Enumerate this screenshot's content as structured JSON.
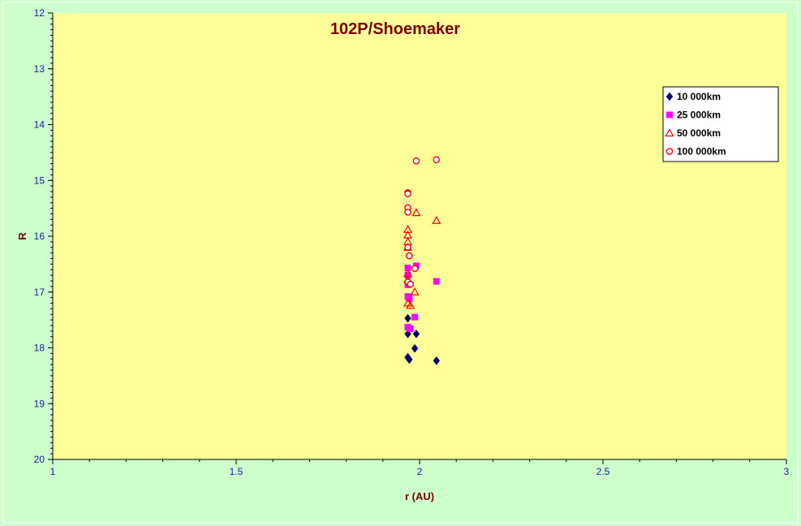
{
  "chart_data": {
    "type": "scatter",
    "title": "102P/Shoemaker",
    "xlabel": "r (AU)",
    "ylabel": "R",
    "xlim": [
      1,
      3
    ],
    "ylim": [
      12,
      20
    ],
    "y_inverted": true,
    "x_ticks": [
      {
        "value": 1,
        "label": "1"
      },
      {
        "value": 1.5,
        "label": "1.5"
      },
      {
        "value": 2,
        "label": "2"
      },
      {
        "value": 2.5,
        "label": "2.5"
      },
      {
        "value": 3,
        "label": "3"
      }
    ],
    "y_ticks": [
      {
        "value": 12,
        "label": "12"
      },
      {
        "value": 13,
        "label": "13"
      },
      {
        "value": 14,
        "label": "14"
      },
      {
        "value": 15,
        "label": "15"
      },
      {
        "value": 16,
        "label": "16"
      },
      {
        "value": 17,
        "label": "17"
      },
      {
        "value": 18,
        "label": "18"
      },
      {
        "value": 19,
        "label": "19"
      },
      {
        "value": 20,
        "label": "20"
      }
    ],
    "grid": false,
    "legend_position": "top-right",
    "colors": {
      "outer_background": "#ccffcc",
      "plot_background": "#ffff99",
      "axis": "#000000",
      "text": "#7a0000",
      "ticks": "#1a1aa6"
    },
    "series": [
      {
        "name": "10 000km",
        "marker": "diamond",
        "color": "#000066",
        "points": [
          {
            "x": 1.968,
            "y": 17.47
          },
          {
            "x": 1.968,
            "y": 17.75
          },
          {
            "x": 1.991,
            "y": 17.75
          },
          {
            "x": 1.987,
            "y": 18.01
          },
          {
            "x": 1.968,
            "y": 18.17
          },
          {
            "x": 1.972,
            "y": 18.21
          },
          {
            "x": 2.046,
            "y": 18.23
          }
        ]
      },
      {
        "name": "25 000km",
        "marker": "square",
        "color": "#ff00ff",
        "points": [
          {
            "x": 1.968,
            "y": 16.57
          },
          {
            "x": 1.991,
            "y": 16.53
          },
          {
            "x": 1.968,
            "y": 16.7
          },
          {
            "x": 1.968,
            "y": 16.87
          },
          {
            "x": 2.046,
            "y": 16.81
          },
          {
            "x": 1.968,
            "y": 17.08
          },
          {
            "x": 1.972,
            "y": 17.12
          },
          {
            "x": 1.987,
            "y": 17.45
          },
          {
            "x": 1.968,
            "y": 17.63
          },
          {
            "x": 1.975,
            "y": 17.66
          }
        ]
      },
      {
        "name": "50 000km",
        "marker": "triangle",
        "color": "#ff0000",
        "points": [
          {
            "x": 1.991,
            "y": 15.58
          },
          {
            "x": 2.046,
            "y": 15.72
          },
          {
            "x": 1.968,
            "y": 15.88
          },
          {
            "x": 1.968,
            "y": 15.98
          },
          {
            "x": 1.968,
            "y": 16.1
          },
          {
            "x": 1.968,
            "y": 16.2
          },
          {
            "x": 1.968,
            "y": 16.67
          },
          {
            "x": 1.968,
            "y": 16.78
          },
          {
            "x": 1.987,
            "y": 17.0
          },
          {
            "x": 1.968,
            "y": 17.2
          },
          {
            "x": 1.975,
            "y": 17.24
          }
        ]
      },
      {
        "name": "100 000km",
        "marker": "circle",
        "color": "#ff0000",
        "points": [
          {
            "x": 1.991,
            "y": 14.65
          },
          {
            "x": 2.046,
            "y": 14.63
          },
          {
            "x": 1.968,
            "y": 15.22
          },
          {
            "x": 1.968,
            "y": 15.24
          },
          {
            "x": 1.968,
            "y": 15.49
          },
          {
            "x": 1.968,
            "y": 15.57
          },
          {
            "x": 1.968,
            "y": 16.2
          },
          {
            "x": 1.972,
            "y": 16.35
          },
          {
            "x": 1.987,
            "y": 16.58
          },
          {
            "x": 1.968,
            "y": 16.82
          },
          {
            "x": 1.975,
            "y": 16.86
          }
        ]
      }
    ]
  }
}
